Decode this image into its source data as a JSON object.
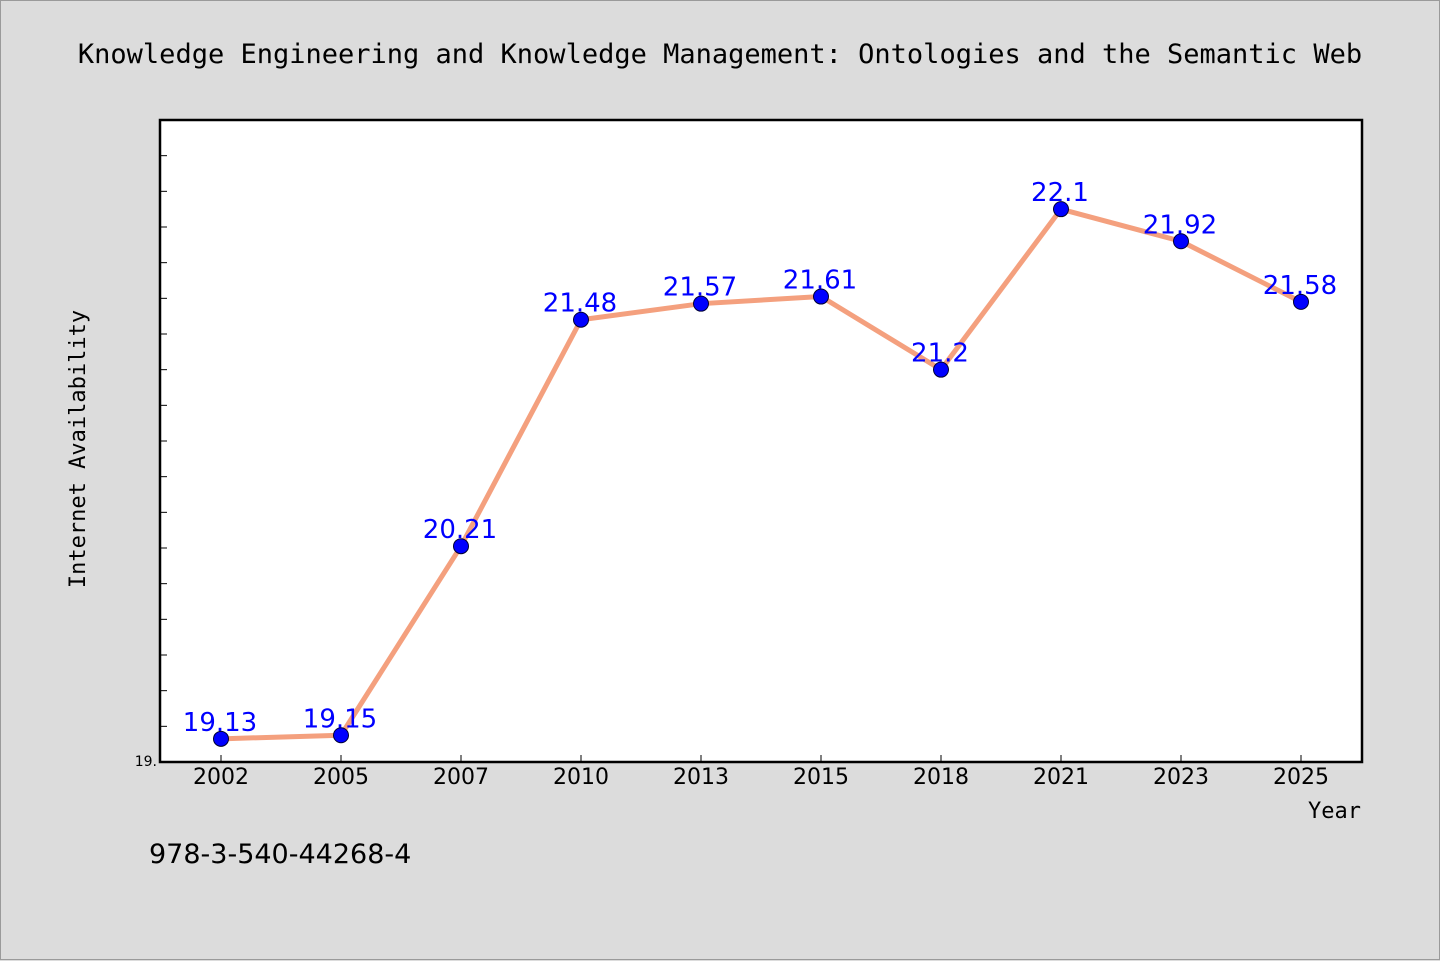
{
  "chart_data": {
    "type": "line",
    "title": "Knowledge Engineering and Knowledge Management: Ontologies and the Semantic Web",
    "xlabel": "Year",
    "ylabel": "Internet Availability",
    "categories": [
      "2002",
      "2005",
      "2007",
      "2010",
      "2013",
      "2015",
      "2018",
      "2021",
      "2023",
      "2025"
    ],
    "values": [
      19.13,
      19.15,
      20.21,
      21.48,
      21.57,
      21.61,
      21.2,
      22.1,
      21.92,
      21.58
    ],
    "data_labels": [
      "19.13",
      "19.15",
      "20.21",
      "21.48",
      "21.57",
      "21.61",
      "21.2",
      "22.1",
      "21.92",
      "21.58"
    ],
    "ylim": [
      19.0,
      22.6
    ],
    "y_tick_labels": [
      "19."
    ],
    "line_color": "#f4a07e",
    "marker_color": "#0000ff",
    "label_color": "#0000ff",
    "grid": false,
    "legend": "none"
  },
  "footer": {
    "isbn": "978-3-540-44268-4"
  }
}
